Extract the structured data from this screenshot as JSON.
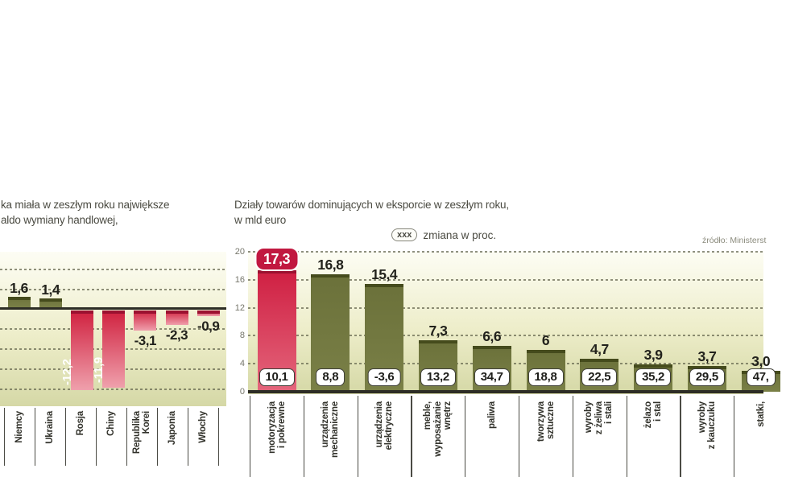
{
  "chart_data": [
    {
      "id": "trade-balance-by-country",
      "type": "bar",
      "title_lines": [
        "ka miała w zeszłym roku największe",
        "aldo wymiany handlowej,"
      ],
      "note": "text and first column clipped at left edge of screenshot",
      "categories": [
        "Niemcy",
        "Ukraina",
        "Rosja",
        "Chiny",
        "Republika Korei",
        "Japonia",
        "Włochy"
      ],
      "category_lines": [
        [
          "Niemcy"
        ],
        [
          "Ukraina"
        ],
        [
          "Rosja"
        ],
        [
          "Chiny"
        ],
        [
          "Republika",
          "Korei"
        ],
        [
          "Japonia"
        ],
        [
          "Włochy"
        ]
      ],
      "values": [
        1.6,
        1.4,
        -12.2,
        -11.9,
        -3.1,
        -2.3,
        -0.9
      ],
      "value_labels": [
        "1,6",
        "1,4",
        "-12,2",
        "-11,9",
        "-3,1",
        "-2,3",
        "-0,9"
      ],
      "bar_colors": [
        "olive",
        "olive",
        "red",
        "red",
        "red",
        "red",
        "red"
      ],
      "label_styles": [
        "above",
        "above",
        "inside",
        "inside",
        "below",
        "below",
        "below"
      ],
      "partial_left_label": "y",
      "grid": "dashed-horizontal",
      "zero_axis": true
    },
    {
      "id": "export-categories",
      "type": "bar",
      "title_lines": [
        "Działy towarów dominujących w eksporcie w zeszłym roku,",
        "w mld euro"
      ],
      "legend": {
        "box_text": "xxx",
        "text": "zmiana w proc."
      },
      "source": "źródło: Ministerst",
      "ylim": [
        0,
        20
      ],
      "yticks": [
        0,
        4,
        8,
        12,
        16,
        20
      ],
      "categories": [
        "motoryzacja i pokrewne",
        "urządzenia mechaniczne",
        "urządzenia elektryczne",
        "meble, wyposażanie wnętrz",
        "paliwa",
        "tworzywa sztuczne",
        "wyroby z żeliwa i stali",
        "żelazo i stal",
        "wyroby z kauczuku",
        "statki,"
      ],
      "category_lines": [
        [
          "motoryzacja",
          "i pokrewne"
        ],
        [
          "urządzenia",
          "mechaniczne"
        ],
        [
          "urządzenia",
          "elektryczne"
        ],
        [
          "meble,",
          "wyposażanie",
          "wnętrz"
        ],
        [
          "paliwa"
        ],
        [
          "tworzywa",
          "sztuczne"
        ],
        [
          "wyroby",
          "z żeliwa",
          "i stali"
        ],
        [
          "żelazo",
          "i stal"
        ],
        [
          "wyroby",
          "z kauczuku"
        ],
        [
          "statki,"
        ]
      ],
      "values": [
        17.3,
        16.8,
        15.4,
        7.3,
        6.6,
        6,
        4.7,
        3.9,
        3.7,
        3.0
      ],
      "value_labels": [
        "17,3",
        "16,8",
        "15,4",
        "7,3",
        "6,6",
        "6",
        "4,7",
        "3,9",
        "3,7",
        "3,0"
      ],
      "changes_proc": [
        "10,1",
        "8,8",
        "-3,6",
        "13,2",
        "34,7",
        "18,8",
        "22,5",
        "35,2",
        "29,5",
        "47,"
      ],
      "bar_colors": [
        "red",
        "olive",
        "olive",
        "olive",
        "olive",
        "olive",
        "olive",
        "olive",
        "olive",
        "olive"
      ],
      "grid": "dashed-horizontal",
      "note": "last column clipped at right edge of screenshot"
    }
  ],
  "colors": {
    "olive_bar": "#6b713a",
    "olive_cap": "#454b1c",
    "red_bar": "#cf1f42",
    "red_cap": "#9b1130",
    "red_value_badge": "#c11840",
    "plot_top": "#fdfdf4",
    "plot_bottom": "#d5d8a6",
    "axis": "#2d2d25"
  }
}
